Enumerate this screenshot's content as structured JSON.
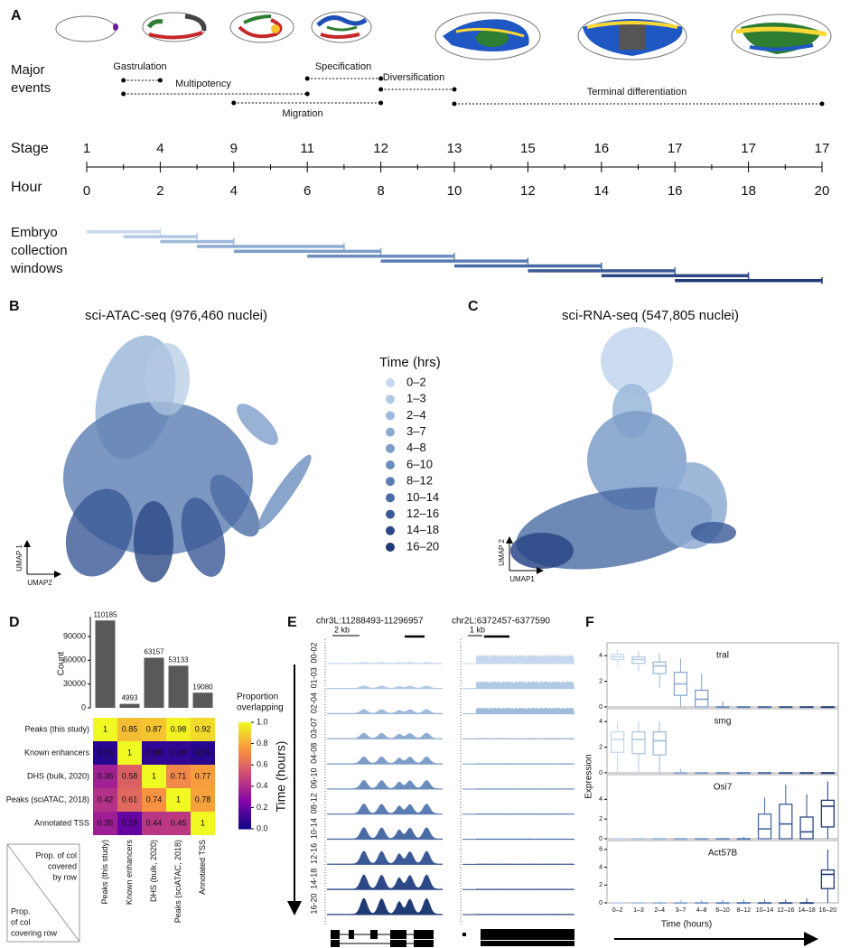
{
  "panel_labels": [
    "A",
    "B",
    "C",
    "D",
    "E",
    "F"
  ],
  "timeline": {
    "events_title": [
      "Major",
      "events"
    ],
    "events": [
      {
        "name": "Gastrulation",
        "start": 1,
        "end": 2
      },
      {
        "name": "Multipotency",
        "start": 1,
        "end": 6
      },
      {
        "name": "Migration",
        "start": 4,
        "end": 8
      },
      {
        "name": "Specification",
        "start": 6,
        "end": 8
      },
      {
        "name": "Diversification",
        "start": 8,
        "end": 10
      },
      {
        "name": "Terminal differentiation",
        "start": 10,
        "end": 20
      }
    ],
    "stage_title": "Stage",
    "stages": [
      1,
      4,
      9,
      11,
      12,
      13,
      15,
      16,
      17,
      17,
      17
    ],
    "hour_title": "Hour",
    "hours": [
      0,
      2,
      4,
      6,
      8,
      10,
      12,
      14,
      16,
      18,
      20
    ],
    "windows_title": [
      "Embryo",
      "collection",
      "windows"
    ],
    "windows": [
      {
        "label": "0–2",
        "start": 0,
        "end": 2,
        "color": "#c6d8ee"
      },
      {
        "label": "1–3",
        "start": 1,
        "end": 3,
        "color": "#b2c9e4"
      },
      {
        "label": "2–4",
        "start": 2,
        "end": 4,
        "color": "#9fbadb"
      },
      {
        "label": "3–7",
        "start": 3,
        "end": 7,
        "color": "#8eacd2"
      },
      {
        "label": "4–8",
        "start": 4,
        "end": 8,
        "color": "#7e9ec9"
      },
      {
        "label": "6–10",
        "start": 6,
        "end": 10,
        "color": "#6c8ebe"
      },
      {
        "label": "8–12",
        "start": 8,
        "end": 12,
        "color": "#5b7db2"
      },
      {
        "label": "10–14",
        "start": 10,
        "end": 14,
        "color": "#4a6ba4"
      },
      {
        "label": "12–16",
        "start": 12,
        "end": 16,
        "color": "#3a5996"
      },
      {
        "label": "14–18",
        "start": 14,
        "end": 18,
        "color": "#2c4886"
      },
      {
        "label": "16–20",
        "start": 16,
        "end": 20,
        "color": "#203a75"
      }
    ]
  },
  "umap": {
    "legend_title": "Time (hrs)",
    "atac": {
      "title": "sci-ATAC-seq (976,460 nuclei)",
      "x_label": "UMAP2",
      "y_label": "UMAP 1"
    },
    "rna": {
      "title": "sci-RNA-seq (547,805 nuclei)",
      "x_label": "UMAP1",
      "y_label": "UMAP 2"
    }
  },
  "overlap": {
    "type": "bar",
    "y_label": "Count",
    "sets": [
      "Peaks (this study)",
      "Known enhancers",
      "DHS (bulk, 2020)",
      "Peaks (sciATAC, 2018)",
      "Annotated TSS"
    ],
    "values": [
      110185,
      4993,
      63157,
      53133,
      19080
    ],
    "color": "#595959",
    "ylim": [
      0,
      115000
    ],
    "yticks": [
      0,
      30000,
      60000,
      90000
    ],
    "matrix": [
      [
        1,
        0.85,
        0.87,
        0.98,
        0.92
      ],
      [
        0.06,
        1,
        0.08,
        0.08,
        0.06
      ],
      [
        0.36,
        0.58,
        1,
        0.71,
        0.77
      ],
      [
        0.42,
        0.61,
        0.74,
        1,
        0.78
      ],
      [
        0.35,
        0.19,
        0.44,
        0.45,
        1
      ]
    ],
    "colormap": "plasma",
    "colorbar_title": [
      "Proportion",
      "overlapping"
    ],
    "colorbar_lim": [
      0,
      1
    ],
    "colorbar_ticks": [
      {
        "value": 0,
        "label": "0.0"
      },
      0.2,
      0.4,
      0.6,
      0.8,
      {
        "value": 1,
        "label": "1.0"
      }
    ],
    "key_upper": [
      "Prop. of col",
      "covered",
      "by row"
    ],
    "key_lower": [
      "Prop.",
      "of col",
      "covering row"
    ]
  },
  "tracks": {
    "y_label": "Time (hours)",
    "rows": [
      "00-02",
      "01-03",
      "02-04",
      "03-07",
      "04-08",
      "06-10",
      "08-12",
      "10-14",
      "12-16",
      "14-18",
      "16-20"
    ],
    "loci": [
      {
        "name": "chr3L:11288493-11296957",
        "scale": "2 kb"
      },
      {
        "name": "chr2L:6372457-6377590",
        "scale": "1 kb"
      }
    ]
  },
  "expression": {
    "y_label": "Expression",
    "x_label": "Time (hours)",
    "genes": [
      {
        "name": "tral",
        "ylim": [
          0,
          5
        ],
        "yticks": [
          0,
          2,
          4
        ],
        "boxes": [
          [
            3.2,
            3.7,
            3.9,
            4.1,
            4.5
          ],
          [
            2.8,
            3.4,
            3.7,
            3.9,
            4.4
          ],
          [
            1.5,
            2.6,
            3.2,
            3.5,
            4.2
          ],
          [
            0,
            0.9,
            1.8,
            2.7,
            3.8
          ],
          [
            0,
            0,
            0.6,
            1.3,
            2.6
          ],
          [
            0,
            0,
            0,
            0,
            0.4
          ],
          [
            0,
            0,
            0,
            0,
            0
          ],
          [
            0,
            0,
            0,
            0,
            0
          ],
          [
            0,
            0,
            0,
            0,
            0
          ],
          [
            0,
            0,
            0,
            0,
            0
          ],
          [
            0,
            0,
            0,
            0,
            0
          ]
        ]
      },
      {
        "name": "smg",
        "ylim": [
          0,
          5
        ],
        "yticks": [
          0,
          2,
          4
        ],
        "boxes": [
          [
            0,
            1.6,
            2.6,
            3.2,
            4.0
          ],
          [
            0,
            1.5,
            2.6,
            3.2,
            4.0
          ],
          [
            0,
            1.4,
            2.5,
            3.2,
            4.0
          ],
          [
            0,
            0,
            0,
            0,
            0.3
          ],
          [
            0,
            0,
            0,
            0,
            0
          ],
          [
            0,
            0,
            0,
            0,
            0
          ],
          [
            0,
            0,
            0,
            0,
            0
          ],
          [
            0,
            0,
            0,
            0,
            0
          ],
          [
            0,
            0,
            0,
            0,
            0
          ],
          [
            0,
            0,
            0,
            0,
            0
          ],
          [
            0,
            0,
            0,
            0,
            0
          ]
        ]
      },
      {
        "name": "Osi7",
        "ylim": [
          0,
          6.5
        ],
        "yticks": [
          0,
          2,
          4
        ],
        "boxes": [
          [
            0,
            0,
            0,
            0,
            0
          ],
          [
            0,
            0,
            0,
            0,
            0
          ],
          [
            0,
            0,
            0,
            0,
            0
          ],
          [
            0,
            0,
            0,
            0,
            0
          ],
          [
            0,
            0,
            0,
            0,
            0
          ],
          [
            0,
            0,
            0,
            0,
            0
          ],
          [
            0,
            0,
            0,
            0,
            0.2
          ],
          [
            0,
            0,
            1.0,
            2.5,
            4.2
          ],
          [
            0,
            0,
            1.5,
            3.5,
            5.5
          ],
          [
            0,
            0,
            0.7,
            2.2,
            4.5
          ],
          [
            0,
            1.2,
            3.3,
            3.9,
            5.8
          ]
        ]
      },
      {
        "name": "Act57B",
        "ylim": [
          0,
          7
        ],
        "yticks": [
          0,
          2,
          4,
          6
        ],
        "boxes": [
          [
            0,
            0,
            0,
            0,
            0
          ],
          [
            0,
            0,
            0,
            0,
            0
          ],
          [
            0,
            0,
            0,
            0,
            0.2
          ],
          [
            0,
            0,
            0,
            0,
            0.3
          ],
          [
            0,
            0,
            0,
            0,
            0.3
          ],
          [
            0,
            0,
            0,
            0,
            0.3
          ],
          [
            0,
            0,
            0,
            0,
            0.4
          ],
          [
            0,
            0,
            0,
            0,
            0.4
          ],
          [
            0,
            0,
            0,
            0,
            0.4
          ],
          [
            0,
            0,
            0,
            0,
            0.5
          ],
          [
            0,
            1.6,
            3.2,
            3.7,
            6.0
          ]
        ]
      }
    ]
  }
}
